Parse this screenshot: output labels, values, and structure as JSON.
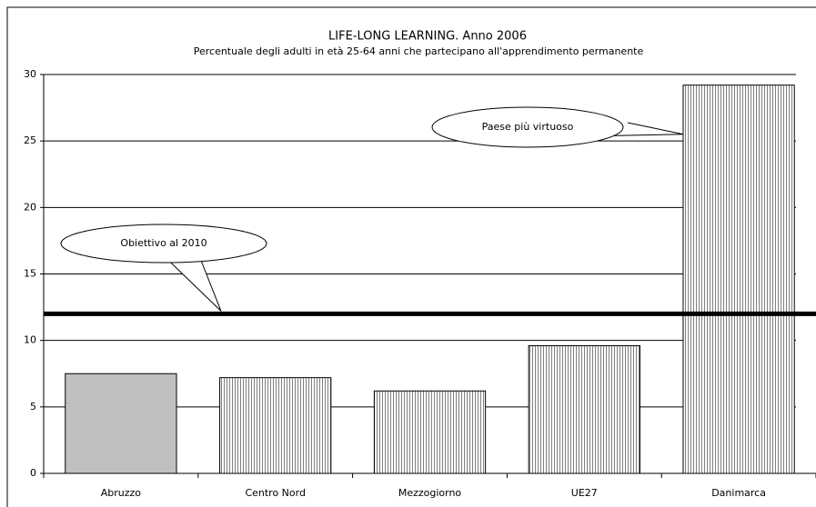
{
  "chart_data": {
    "type": "bar",
    "title": "LIFE-LONG LEARNING. Anno 2006",
    "subtitle": "Percentuale degli adulti in età 25-64 anni che partecipano all'apprendimento permanente",
    "categories": [
      "Abruzzo",
      "Centro Nord",
      "Mezzogiorno",
      "UE27",
      "Danimarca"
    ],
    "values": [
      7.5,
      7.2,
      6.2,
      9.6,
      29.2
    ],
    "colors": [
      "#c0c0c0",
      "#808080",
      "#808080",
      "#808080",
      "#808080"
    ],
    "patterns": [
      "solid",
      "vertical-stripes",
      "vertical-stripes",
      "vertical-stripes",
      "vertical-stripes"
    ],
    "ylim": [
      0,
      30
    ],
    "yticks": [
      0,
      5,
      10,
      15,
      20,
      25,
      30
    ],
    "grid": true,
    "reference_line": {
      "value": 12,
      "label": "Obiettivo al 2010",
      "color": "#000000"
    },
    "annotations": [
      {
        "text": "Paese più virtuoso",
        "category": 4
      }
    ]
  }
}
